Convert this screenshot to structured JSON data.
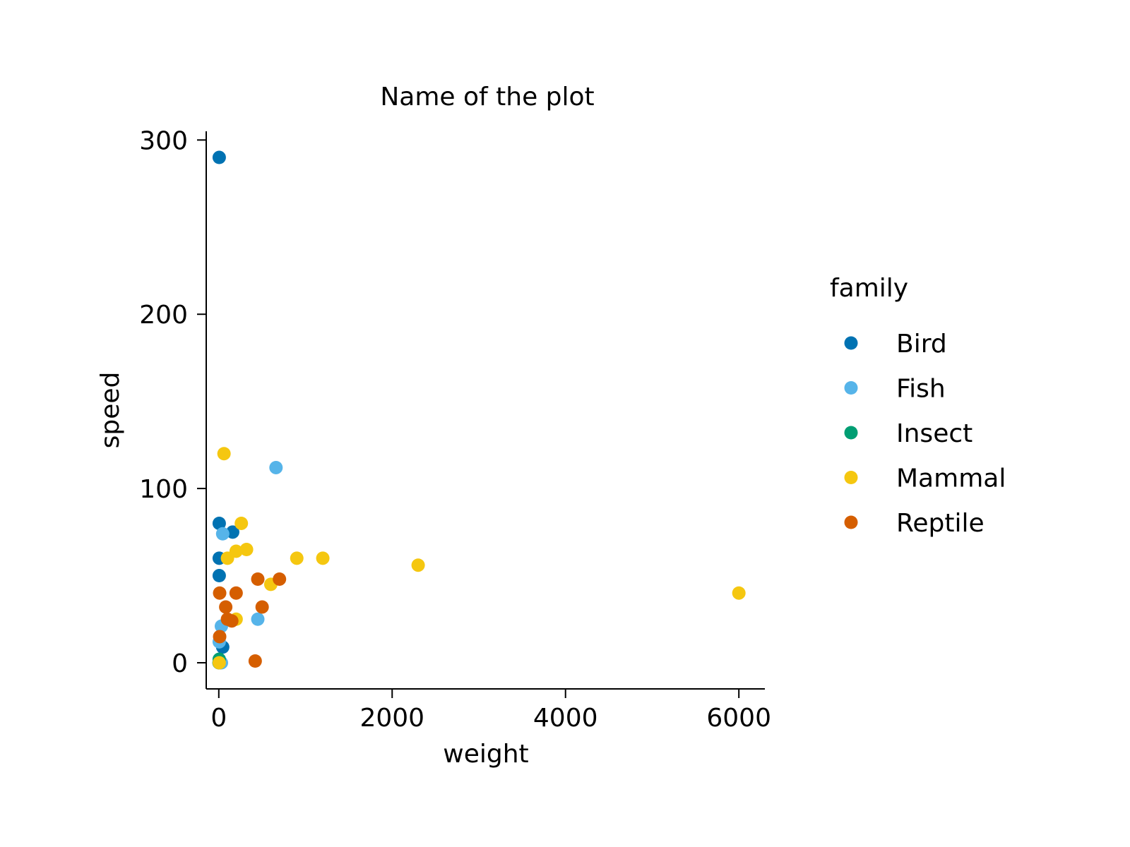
{
  "chart_data": {
    "type": "scatter",
    "title": "Name of the plot",
    "xlabel": "weight",
    "ylabel": "speed",
    "xlim": [
      -145,
      6300
    ],
    "ylim": [
      -15,
      305
    ],
    "xticks": [
      0,
      2000,
      4000,
      6000
    ],
    "xtick_labels": [
      "0",
      "2000",
      "4000",
      "6000"
    ],
    "yticks": [
      0,
      100,
      200,
      300
    ],
    "ytick_labels": [
      "0",
      "100",
      "200",
      "300"
    ],
    "grid": false,
    "legend": {
      "title": "family",
      "position": "right"
    },
    "series": [
      {
        "name": "Bird",
        "color": "#0072B2",
        "points": [
          {
            "x": 5,
            "y": 290
          },
          {
            "x": 5,
            "y": 80
          },
          {
            "x": 160,
            "y": 75
          },
          {
            "x": 5,
            "y": 60
          },
          {
            "x": 5,
            "y": 50
          },
          {
            "x": 45,
            "y": 9
          },
          {
            "x": 10,
            "y": 0
          }
        ]
      },
      {
        "name": "Fish",
        "color": "#56B4E9",
        "points": [
          {
            "x": 660,
            "y": 112
          },
          {
            "x": 45,
            "y": 74
          },
          {
            "x": 450,
            "y": 25
          },
          {
            "x": 30,
            "y": 21
          },
          {
            "x": 5,
            "y": 12
          },
          {
            "x": 30,
            "y": 0
          }
        ]
      },
      {
        "name": "Insect",
        "color": "#009E73",
        "points": [
          {
            "x": 5,
            "y": 2
          },
          {
            "x": 2,
            "y": 0
          }
        ]
      },
      {
        "name": "Mammal",
        "color": "#F5C710",
        "points": [
          {
            "x": 60,
            "y": 120
          },
          {
            "x": 260,
            "y": 80
          },
          {
            "x": 320,
            "y": 65
          },
          {
            "x": 200,
            "y": 64
          },
          {
            "x": 100,
            "y": 60
          },
          {
            "x": 900,
            "y": 60
          },
          {
            "x": 1200,
            "y": 60
          },
          {
            "x": 2300,
            "y": 56
          },
          {
            "x": 600,
            "y": 45
          },
          {
            "x": 6000,
            "y": 40
          },
          {
            "x": 200,
            "y": 25
          },
          {
            "x": 5,
            "y": 0
          }
        ]
      },
      {
        "name": "Reptile",
        "color": "#D55E00",
        "points": [
          {
            "x": 450,
            "y": 48
          },
          {
            "x": 700,
            "y": 48
          },
          {
            "x": 10,
            "y": 40
          },
          {
            "x": 200,
            "y": 40
          },
          {
            "x": 80,
            "y": 32
          },
          {
            "x": 500,
            "y": 32
          },
          {
            "x": 100,
            "y": 25
          },
          {
            "x": 150,
            "y": 24
          },
          {
            "x": 10,
            "y": 15
          },
          {
            "x": 420,
            "y": 1
          }
        ]
      }
    ]
  }
}
